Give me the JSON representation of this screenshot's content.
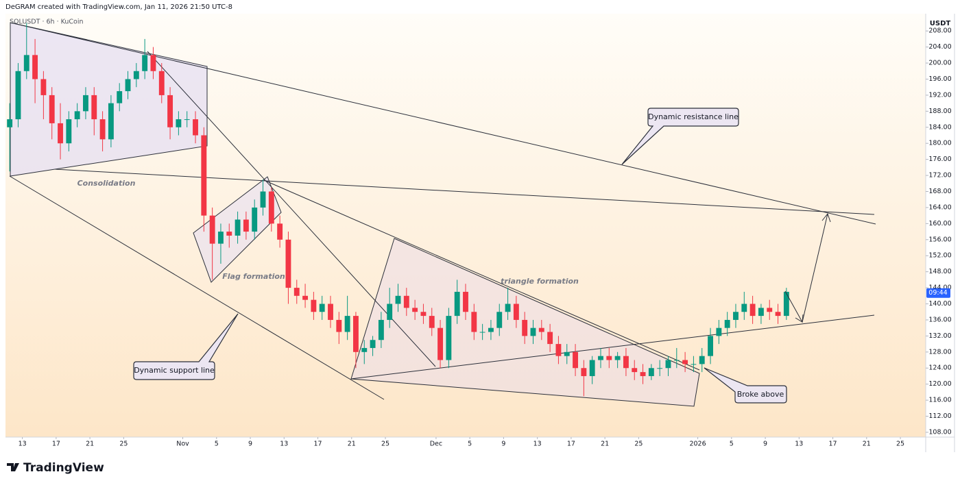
{
  "header": {
    "credit": "DeGRAM created with TradingView.com, Jan 11, 2026 21:50 UTC-8"
  },
  "footer": {
    "logo": "TradingView"
  },
  "chart_data": {
    "type": "candlestick",
    "title": "SOLUSDT · 6h · KuCoin",
    "currency": "USDT",
    "up_color": "#089981",
    "down_color": "#f23645",
    "annotations": [
      "Consolidation",
      "Flag formation",
      "triangle formation",
      "Dynamic resistance line",
      "Dynamic support line",
      "Broke above"
    ],
    "price_marker": {
      "value": 142.7,
      "label": "09:44"
    },
    "xlim": [
      "2025-10-11",
      "2026-01-28"
    ],
    "ylim": [
      106.8,
      212.3
    ],
    "yticks": [
      {
        "value": 108,
        "label": "108.00"
      },
      {
        "value": 112,
        "label": "112.00"
      },
      {
        "value": 116,
        "label": "116.00"
      },
      {
        "value": 120,
        "label": "120.00"
      },
      {
        "value": 124,
        "label": "124.00"
      },
      {
        "value": 128,
        "label": "128.00"
      },
      {
        "value": 132,
        "label": "132.00"
      },
      {
        "value": 136,
        "label": "136.00"
      },
      {
        "value": 140,
        "label": "140.00"
      },
      {
        "value": 144,
        "label": "144.00"
      },
      {
        "value": 148,
        "label": "148.00"
      },
      {
        "value": 152,
        "label": "152.00"
      },
      {
        "value": 156,
        "label": "156.00"
      },
      {
        "value": 160,
        "label": "160.00"
      },
      {
        "value": 164,
        "label": "164.00"
      },
      {
        "value": 168,
        "label": "168.00"
      },
      {
        "value": 172,
        "label": "172.00"
      },
      {
        "value": 176,
        "label": "176.00"
      },
      {
        "value": 180,
        "label": "180.00"
      },
      {
        "value": 184,
        "label": "184.00"
      },
      {
        "value": 188,
        "label": "188.00"
      },
      {
        "value": 192,
        "label": "192.00"
      },
      {
        "value": 196,
        "label": "196.00"
      },
      {
        "value": 200,
        "label": "200.00"
      },
      {
        "value": 204,
        "label": "204.00"
      },
      {
        "value": 208,
        "label": "208.00"
      }
    ],
    "xticks": [
      {
        "value": "2025-10-13",
        "label": "13"
      },
      {
        "value": "2025-10-17",
        "label": "17"
      },
      {
        "value": "2025-10-21",
        "label": "21"
      },
      {
        "value": "2025-10-25",
        "label": "25"
      },
      {
        "value": "2025-11-01",
        "label": "Nov"
      },
      {
        "value": "2025-11-05",
        "label": "5"
      },
      {
        "value": "2025-11-09",
        "label": "9"
      },
      {
        "value": "2025-11-13",
        "label": "13"
      },
      {
        "value": "2025-11-17",
        "label": "17"
      },
      {
        "value": "2025-11-21",
        "label": "21"
      },
      {
        "value": "2025-11-25",
        "label": "25"
      },
      {
        "value": "2025-12-01",
        "label": "Dec"
      },
      {
        "value": "2025-12-05",
        "label": "5"
      },
      {
        "value": "2025-12-09",
        "label": "9"
      },
      {
        "value": "2025-12-13",
        "label": "13"
      },
      {
        "value": "2025-12-17",
        "label": "17"
      },
      {
        "value": "2025-12-21",
        "label": "21"
      },
      {
        "value": "2025-12-25",
        "label": "25"
      },
      {
        "value": "2026-01-01",
        "label": "2026"
      },
      {
        "value": "2026-01-05",
        "label": "5"
      },
      {
        "value": "2026-01-09",
        "label": "9"
      },
      {
        "value": "2026-01-13",
        "label": "13"
      },
      {
        "value": "2026-01-17",
        "label": "17"
      },
      {
        "value": "2026-01-21",
        "label": "21"
      },
      {
        "value": "2026-01-25",
        "label": "25"
      }
    ],
    "x": [
      "2025-10-11",
      "2025-10-12",
      "2025-10-13",
      "2025-10-14",
      "2025-10-15",
      "2025-10-16",
      "2025-10-17",
      "2025-10-18",
      "2025-10-19",
      "2025-10-20",
      "2025-10-21",
      "2025-10-22",
      "2025-10-23",
      "2025-10-24",
      "2025-10-25",
      "2025-10-26",
      "2025-10-27",
      "2025-10-28",
      "2025-10-29",
      "2025-10-30",
      "2025-10-31",
      "2025-11-01",
      "2025-11-02",
      "2025-11-03",
      "2025-11-04",
      "2025-11-05",
      "2025-11-06",
      "2025-11-07",
      "2025-11-08",
      "2025-11-09",
      "2025-11-10",
      "2025-11-11",
      "2025-11-12",
      "2025-11-13",
      "2025-11-14",
      "2025-11-15",
      "2025-11-16",
      "2025-11-17",
      "2025-11-18",
      "2025-11-19",
      "2025-11-20",
      "2025-11-21",
      "2025-11-22",
      "2025-11-23",
      "2025-11-24",
      "2025-11-25",
      "2025-11-26",
      "2025-11-27",
      "2025-11-28",
      "2025-11-29",
      "2025-11-30",
      "2025-12-01",
      "2025-12-02",
      "2025-12-03",
      "2025-12-04",
      "2025-12-05",
      "2025-12-06",
      "2025-12-07",
      "2025-12-08",
      "2025-12-09",
      "2025-12-10",
      "2025-12-11",
      "2025-12-12",
      "2025-12-13",
      "2025-12-14",
      "2025-12-15",
      "2025-12-16",
      "2025-12-17",
      "2025-12-18",
      "2025-12-19",
      "2025-12-20",
      "2025-12-21",
      "2025-12-22",
      "2025-12-23",
      "2025-12-24",
      "2025-12-25",
      "2025-12-26",
      "2025-12-27",
      "2025-12-28",
      "2025-12-29",
      "2025-12-30",
      "2025-12-31",
      "2026-01-01",
      "2026-01-02",
      "2026-01-03",
      "2026-01-04",
      "2026-01-05",
      "2026-01-06",
      "2026-01-07",
      "2026-01-08",
      "2026-01-09",
      "2026-01-10",
      "2026-01-11"
    ],
    "open": [
      184,
      186,
      198,
      202,
      196,
      192,
      185,
      180,
      186,
      188,
      192,
      186,
      181,
      190,
      193,
      196,
      198,
      202,
      198,
      192,
      184,
      186,
      186,
      182,
      162,
      155,
      158,
      157,
      161,
      158,
      164,
      168,
      160,
      156,
      144,
      142,
      141,
      138,
      140,
      136,
      133,
      137,
      128,
      129,
      131,
      136,
      140,
      142,
      139,
      138,
      137,
      134,
      126,
      137,
      143,
      138,
      133,
      133,
      134,
      138,
      140,
      136,
      132,
      134,
      133,
      130,
      127,
      128,
      124,
      122,
      126,
      127,
      126,
      127,
      124,
      123,
      122,
      124,
      124,
      126,
      126,
      125,
      125,
      127,
      132,
      134,
      136,
      138,
      140,
      137,
      139,
      138,
      137
    ],
    "high": [
      190,
      200,
      210,
      206,
      198,
      194,
      190,
      188,
      190,
      194,
      194,
      188,
      192,
      195,
      198,
      200,
      206,
      204,
      200,
      194,
      188,
      188,
      188,
      184,
      164,
      160,
      160,
      163,
      163,
      166,
      171,
      169,
      162,
      158,
      146,
      145,
      143,
      142,
      142,
      138,
      142,
      138,
      131,
      132,
      138,
      144,
      145,
      144,
      141,
      140,
      139,
      136,
      139,
      146,
      145,
      140,
      135,
      136,
      140,
      144,
      142,
      138,
      136,
      136,
      135,
      132,
      130,
      130,
      126,
      127,
      129,
      129,
      128,
      129,
      126,
      125,
      125,
      126,
      127,
      129,
      128,
      127,
      129,
      134,
      136,
      138,
      140,
      143,
      142,
      140,
      141,
      140,
      144
    ],
    "low": [
      173,
      184,
      196,
      190,
      186,
      181,
      176,
      178,
      184,
      186,
      182,
      178,
      179,
      188,
      191,
      194,
      196,
      196,
      190,
      181,
      182,
      184,
      180,
      158,
      146,
      150,
      154,
      155,
      156,
      156,
      162,
      158,
      154,
      140,
      140,
      139,
      136,
      136,
      134,
      130,
      131,
      124,
      125,
      127,
      129,
      134,
      138,
      137,
      136,
      135,
      132,
      124,
      124,
      135,
      136,
      131,
      131,
      131,
      132,
      136,
      134,
      130,
      130,
      131,
      128,
      125,
      125,
      122,
      117,
      120,
      124,
      124,
      124,
      122,
      121,
      120,
      121,
      122,
      122,
      124,
      123,
      123,
      123,
      125,
      130,
      132,
      134,
      136,
      135,
      135,
      136,
      135,
      136
    ],
    "close": [
      186,
      198,
      202,
      196,
      192,
      185,
      180,
      186,
      188,
      192,
      186,
      181,
      190,
      193,
      196,
      198,
      202,
      198,
      192,
      184,
      186,
      186,
      182,
      162,
      155,
      158,
      157,
      161,
      158,
      164,
      168,
      160,
      156,
      144,
      142,
      141,
      138,
      140,
      136,
      133,
      137,
      128,
      129,
      131,
      136,
      140,
      142,
      139,
      138,
      137,
      134,
      126,
      137,
      143,
      138,
      133,
      133,
      134,
      138,
      140,
      136,
      132,
      134,
      133,
      130,
      127,
      128,
      124,
      122,
      126,
      127,
      126,
      127,
      124,
      123,
      122,
      124,
      124,
      126,
      126,
      125,
      125,
      127,
      132,
      134,
      136,
      138,
      140,
      137,
      139,
      138,
      137,
      143
    ]
  }
}
